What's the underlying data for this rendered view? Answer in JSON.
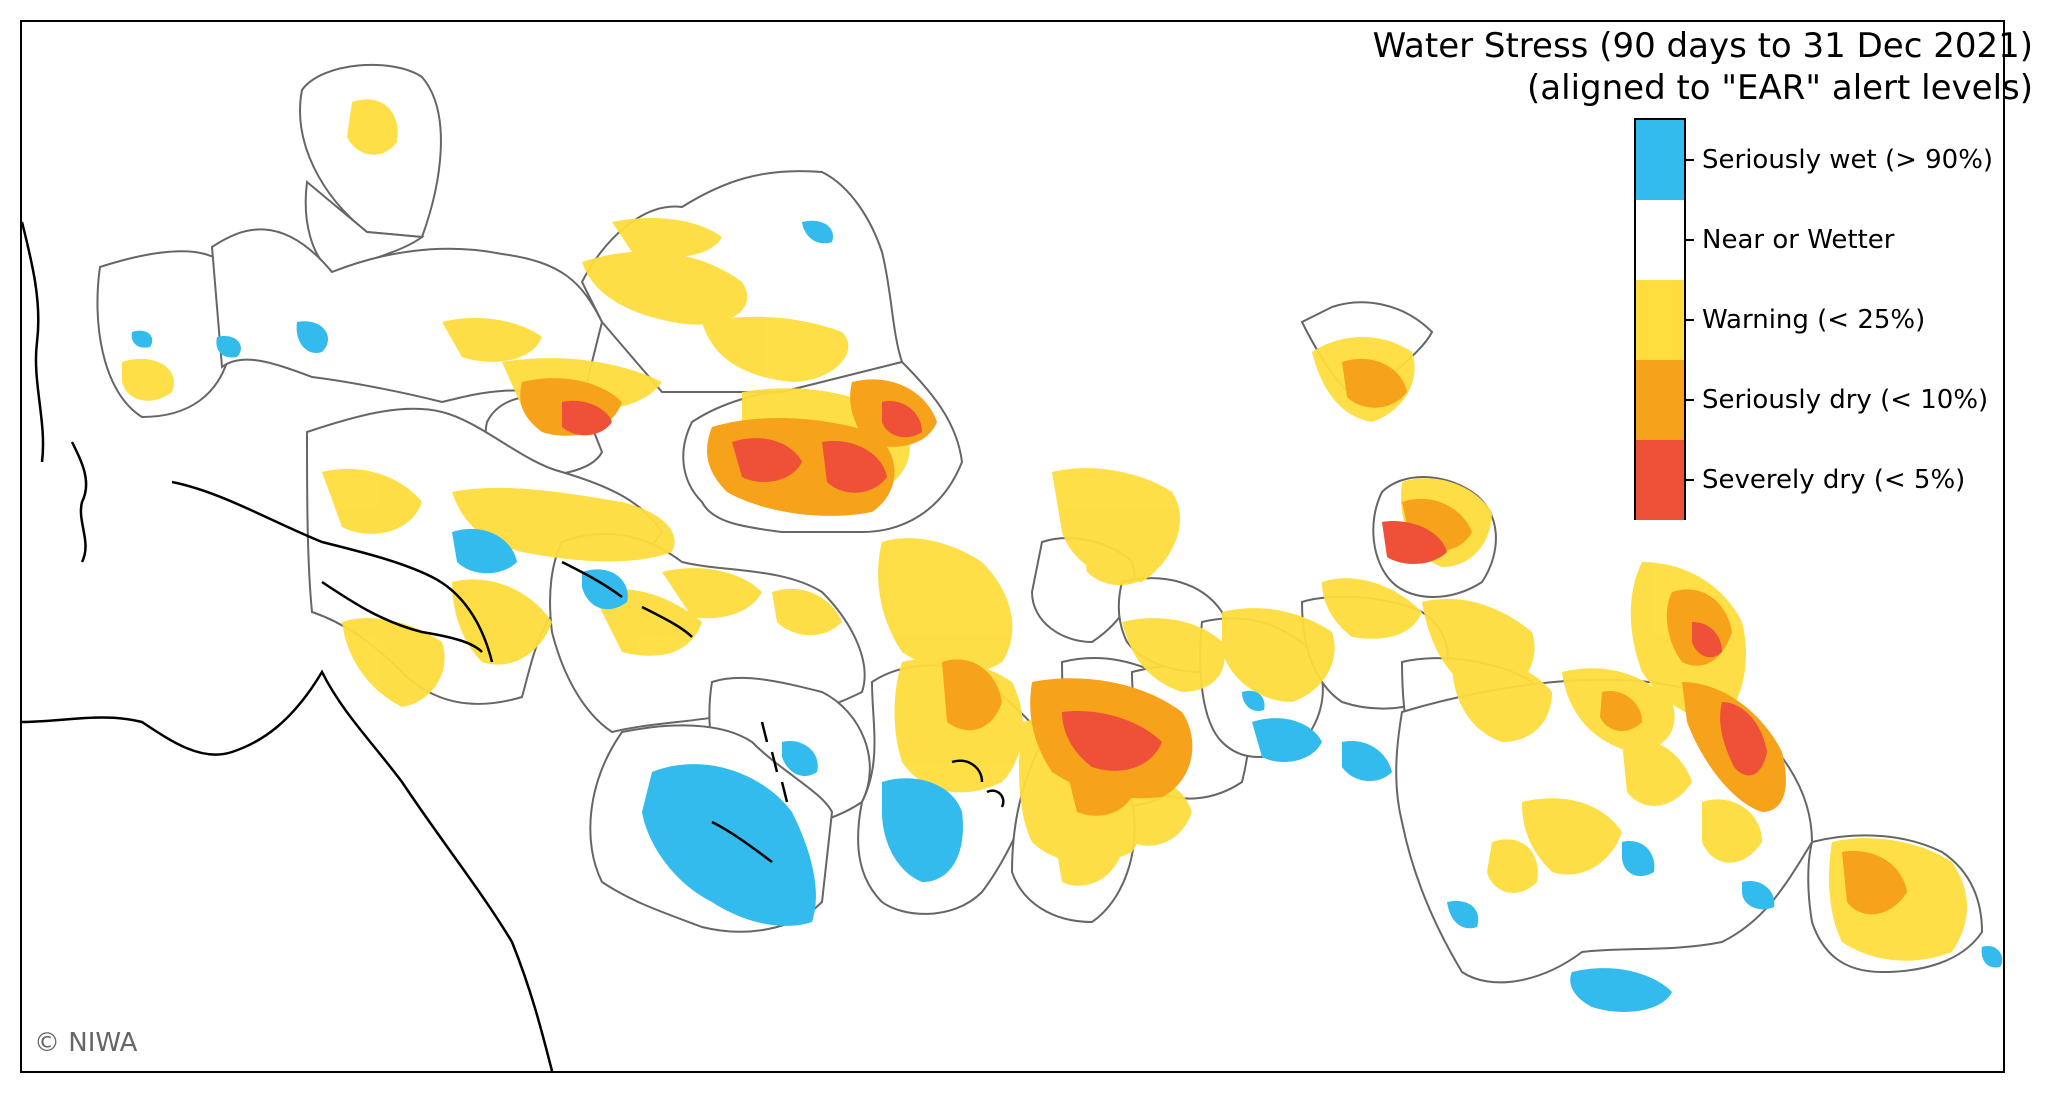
{
  "title": {
    "line1": "Water Stress (90 days to 31 Dec 2021)",
    "line2": "(aligned to \"EAR\" alert levels)"
  },
  "legend": {
    "items": [
      {
        "label": "Seriously wet (> 90%)",
        "color": "#33bbee"
      },
      {
        "label": "Near or Wetter",
        "color": "#ffffff"
      },
      {
        "label": "Warning (< 25%)",
        "color": "#fedd3d"
      },
      {
        "label": "Seriously dry (< 10%)",
        "color": "#f7a21b"
      },
      {
        "label": "Severely dry (< 5%)",
        "color": "#ef5138"
      }
    ]
  },
  "credit": "© NIWA",
  "colors": {
    "boundary": "#666666",
    "coastline": "#000000",
    "background": "#ffffff"
  }
}
